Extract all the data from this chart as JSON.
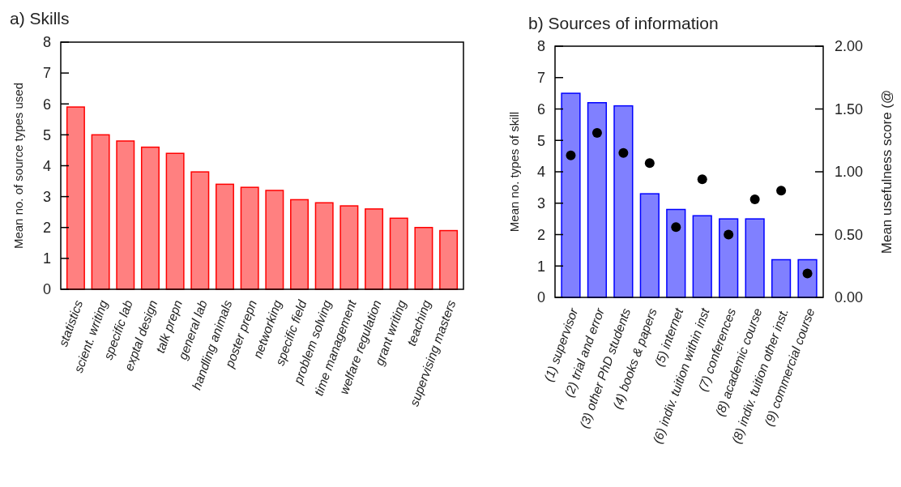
{
  "chart_data": [
    {
      "type": "bar",
      "title": "a) Skills",
      "ylabel": "Mean no. of source types used",
      "categories": [
        "statistics",
        "scient. writing",
        "specific lab",
        "exptal design",
        "talk prepn",
        "general lab",
        "handling animals",
        "poster prepn",
        "networking",
        "specific field",
        "problem solving",
        "time management",
        "welfare regulation",
        "grant writing",
        "teaching",
        "supervising masters"
      ],
      "series": [
        {
          "color": "#ff8080",
          "values": [
            5.9,
            5.0,
            4.8,
            4.6,
            4.4,
            3.8,
            3.4,
            3.3,
            3.2,
            2.9,
            2.8,
            2.7,
            2.6,
            2.3,
            2.0,
            1.9
          ]
        }
      ],
      "ylim": [
        0,
        8
      ],
      "yticks": [
        0,
        1,
        2,
        3,
        4,
        5,
        6,
        7,
        8
      ],
      "grid": false
    },
    {
      "type": "bar",
      "title": "b) Sources of information",
      "ylabel": "Mean no. types of skill",
      "y2label": "Mean usefulness score (@",
      "categories": [
        "(1) supervisor",
        "(2) trial and error",
        "(3) other PhD students",
        "(4) books & papers",
        "(5) internet",
        "(6) indiv. tuition within inst",
        "(7) conferences",
        "(8) academic course",
        "(8) indiv. tuition other inst.",
        "(9) commercial course"
      ],
      "series": [
        {
          "color": "#8080ff",
          "values": [
            6.5,
            6.2,
            6.1,
            3.3,
            2.8,
            2.6,
            2.5,
            2.5,
            1.2,
            1.2
          ]
        },
        {
          "type": "scatter",
          "axis": "y2",
          "color": "#000000",
          "values": [
            1.13,
            1.31,
            1.15,
            1.07,
            0.56,
            0.94,
            0.5,
            0.78,
            0.85,
            0.19
          ]
        }
      ],
      "marker": "circle",
      "ylim": [
        0,
        8
      ],
      "yticks": [
        0,
        1,
        2,
        3,
        4,
        5,
        6,
        7,
        8
      ],
      "y2lim": [
        0,
        2
      ],
      "y2ticks": [
        {
          "value": 0,
          "label": "0.00"
        },
        {
          "value": 0.5,
          "label": "0.50"
        },
        {
          "value": 1,
          "label": "1.00"
        },
        {
          "value": 1.5,
          "label": "1.50"
        },
        {
          "value": 2,
          "label": "2.00"
        }
      ],
      "grid": false
    }
  ]
}
